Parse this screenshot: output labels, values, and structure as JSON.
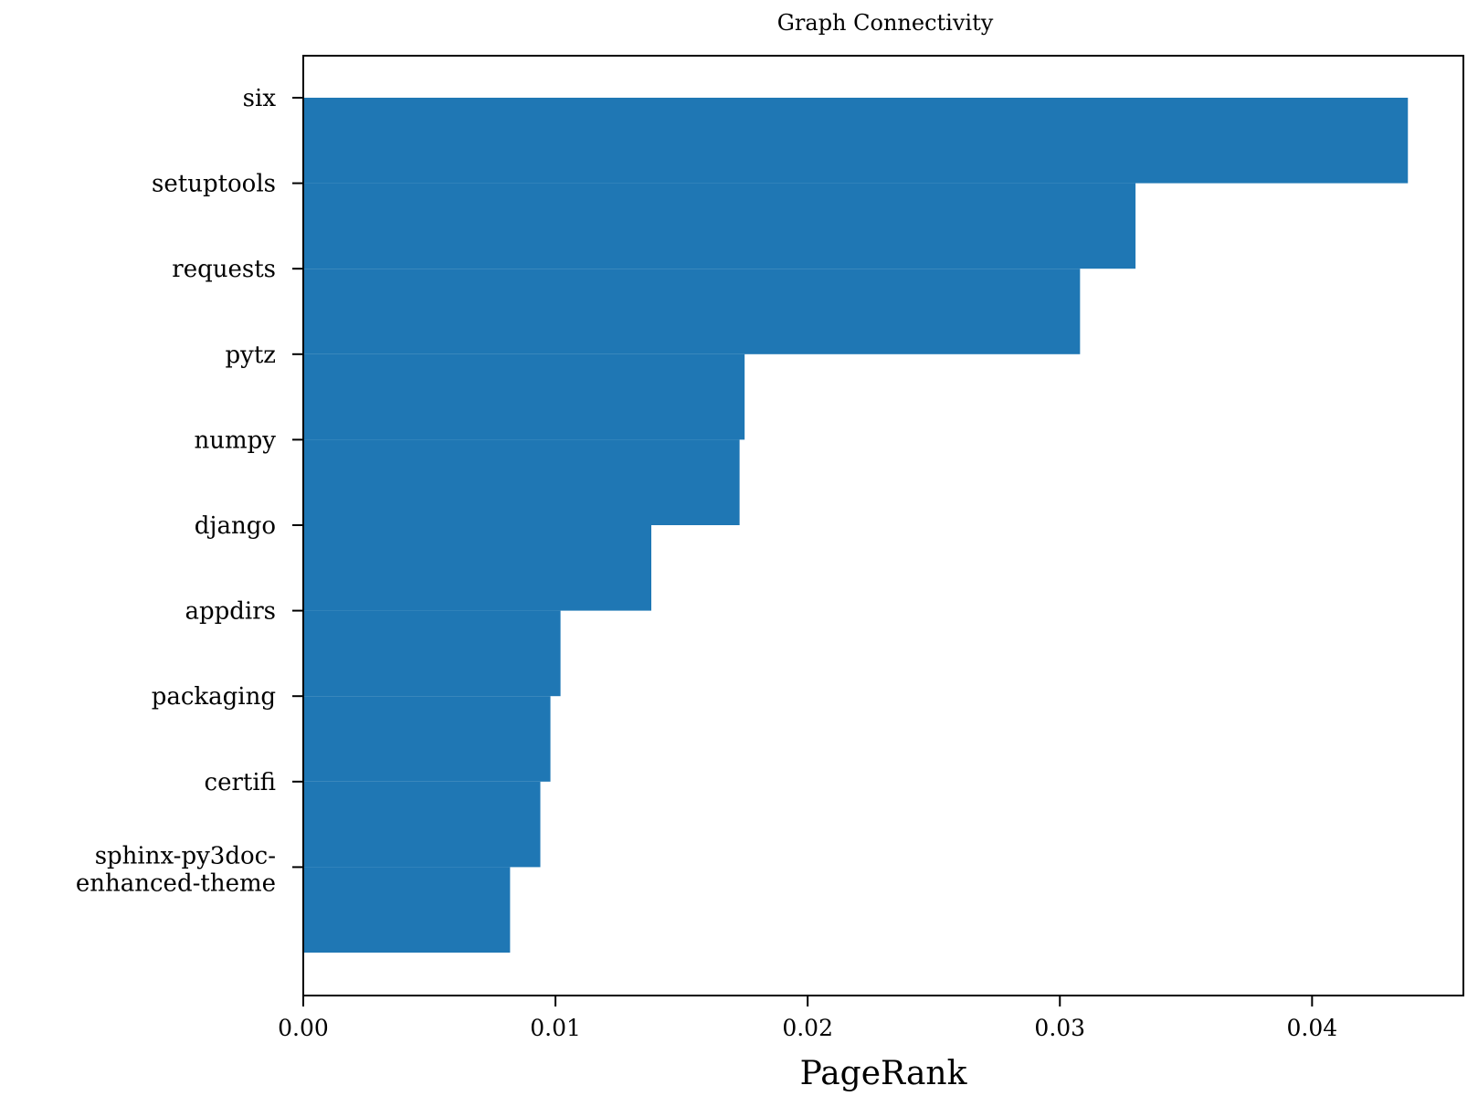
{
  "chart_data": {
    "type": "bar",
    "orientation": "horizontal",
    "title": "Graph Connectivity",
    "xlabel": "PageRank",
    "ylabel": "",
    "categories": [
      "six",
      "setuptools",
      "requests",
      "pytz",
      "numpy",
      "django",
      "appdirs",
      "packaging",
      "certifi",
      "sphinx-py3doc-\nenhanced-theme"
    ],
    "values": [
      0.0438,
      0.033,
      0.0308,
      0.0175,
      0.0173,
      0.0138,
      0.0102,
      0.0098,
      0.0094,
      0.0082
    ],
    "xlim": [
      0.0,
      0.046
    ],
    "xticks": [
      "0.00",
      "0.01",
      "0.02",
      "0.03",
      "0.04"
    ],
    "xtick_values": [
      0.0,
      0.01,
      0.02,
      0.03,
      0.04
    ],
    "bar_color": "#1f77b4",
    "grid": false,
    "legend": "none"
  }
}
